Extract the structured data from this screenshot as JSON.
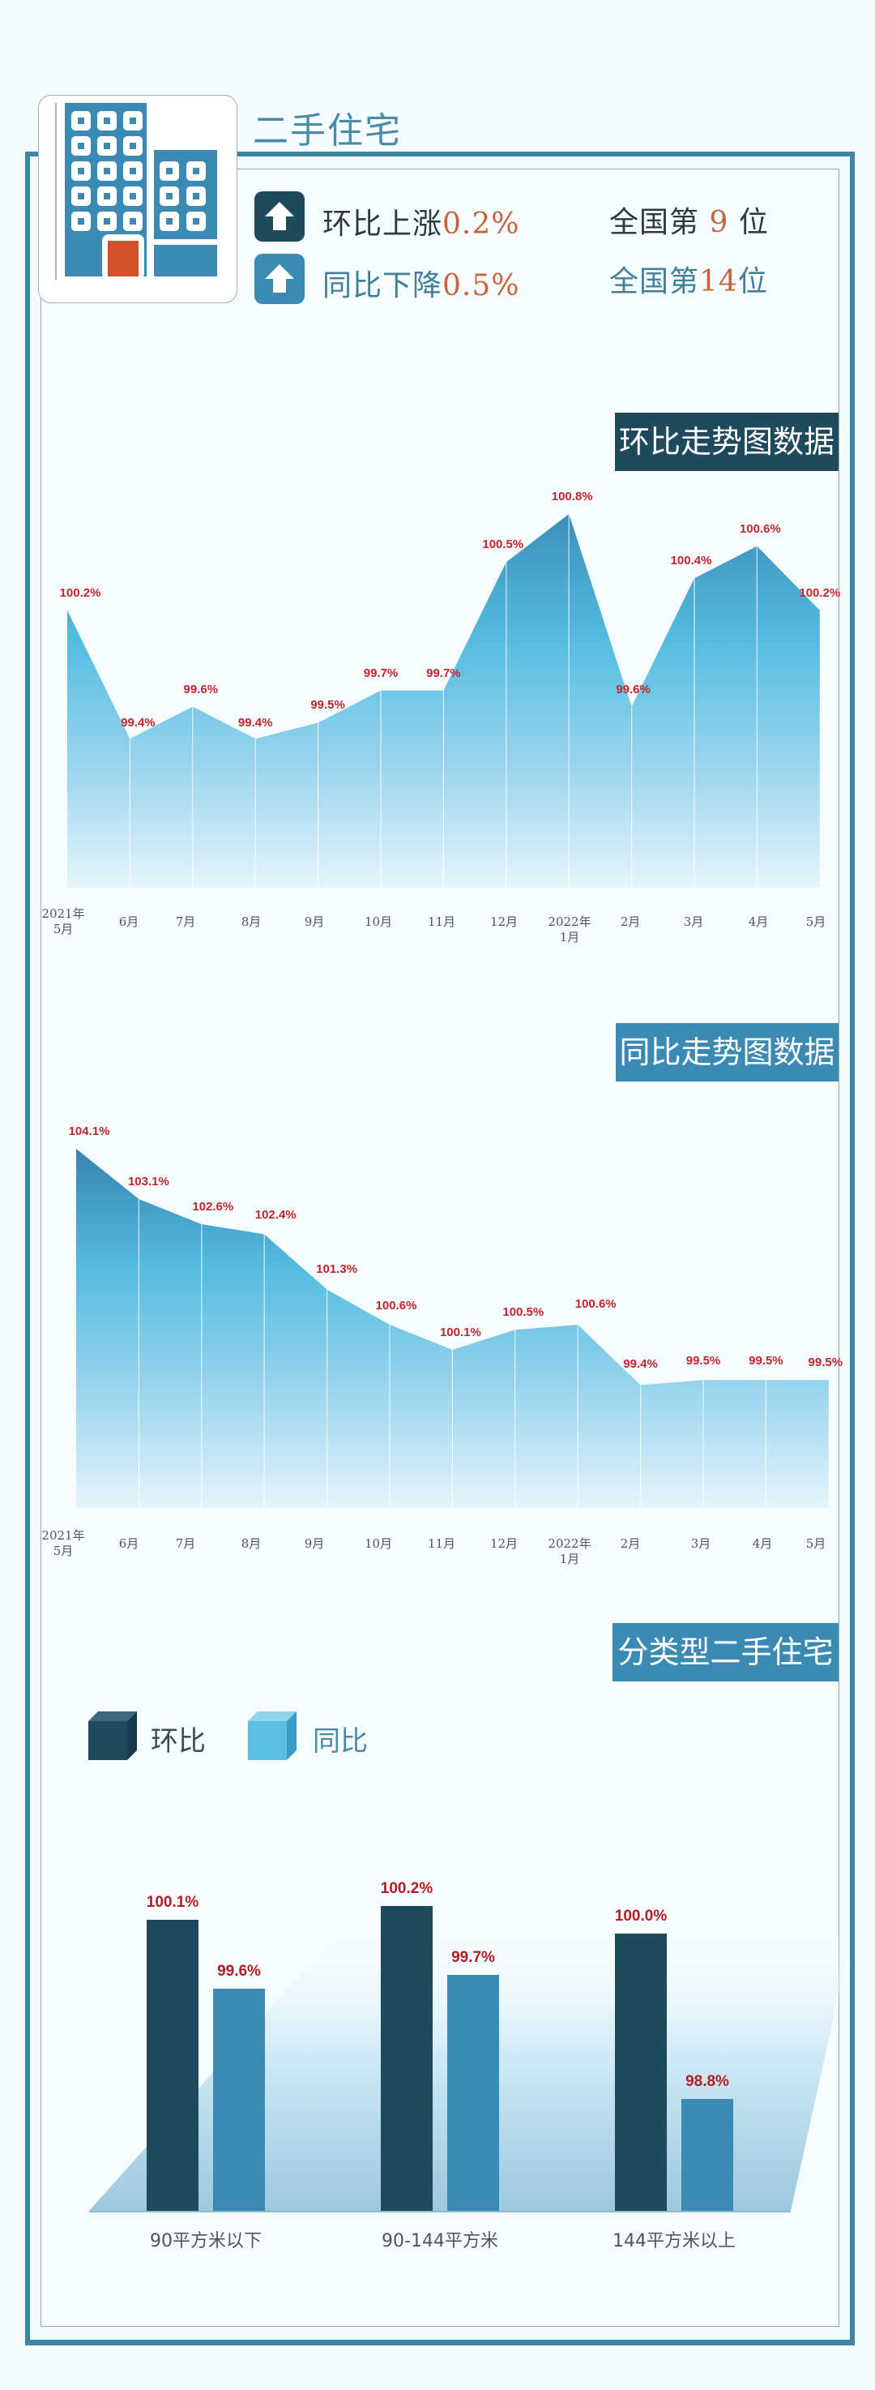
{
  "header": {
    "section_title": "二手住宅",
    "stats": [
      {
        "label": "环比上涨",
        "value": "0.2%",
        "rank_prefix": "全国第",
        "rank": " 9 ",
        "rank_suffix": "位",
        "icon": "arrow-up-icon",
        "color": "#1e4a5c"
      },
      {
        "label": "同比下降",
        "value": "0.5%",
        "rank_prefix": "全国第",
        "rank": "14",
        "rank_suffix": "位",
        "icon": "arrow-up-icon",
        "color": "#3a8ab4"
      }
    ]
  },
  "colors": {
    "frame": "#3f86a6",
    "dark_teal": "#1e4a5c",
    "mid_blue": "#3a8ab4",
    "light_blue": "#5bc0e0",
    "data_label": "#c0262e",
    "highlight_value": "#c8643c"
  },
  "chart_data": [
    {
      "type": "area",
      "title": "环比走势图数据",
      "xlabel": "",
      "ylabel": "",
      "grid": false,
      "categories": [
        "2021年\n5月",
        "6月",
        "7月",
        "8月",
        "9月",
        "10月",
        "11月",
        "12月",
        "2022年\n1月",
        "2月",
        "3月",
        "4月",
        "5月"
      ],
      "values": [
        100.2,
        99.4,
        99.6,
        99.4,
        99.5,
        99.7,
        99.7,
        100.5,
        100.8,
        99.6,
        100.4,
        100.6,
        100.2
      ],
      "labels": [
        "100.2%",
        "99.4%",
        "99.6%",
        "99.4%",
        "99.5%",
        "99.7%",
        "99.7%",
        "100.5%",
        "100.8%",
        "99.6%",
        "100.4%",
        "100.6%",
        "100.2%"
      ]
    },
    {
      "type": "area",
      "title": "同比走势图数据",
      "xlabel": "",
      "ylabel": "",
      "grid": false,
      "categories": [
        "2021年\n5月",
        "6月",
        "7月",
        "8月",
        "9月",
        "10月",
        "11月",
        "12月",
        "2022年\n1月",
        "2月",
        "3月",
        "4月",
        "5月"
      ],
      "values": [
        104.1,
        103.1,
        102.6,
        102.4,
        101.3,
        100.6,
        100.1,
        100.5,
        100.6,
        99.4,
        99.5,
        99.5,
        99.5
      ],
      "labels": [
        "104.1%",
        "103.1%",
        "102.6%",
        "102.4%",
        "101.3%",
        "100.6%",
        "100.1%",
        "100.5%",
        "100.6%",
        "99.4%",
        "99.5%",
        "99.5%",
        "99.5%"
      ]
    },
    {
      "type": "bar",
      "title": "分类型二手住宅",
      "categories": [
        "90平方米以下",
        "90-144平方米",
        "144平方米以上"
      ],
      "series": [
        {
          "name": "环比",
          "values": [
            100.1,
            100.2,
            100.0
          ],
          "labels": [
            "100.1%",
            "100.2%",
            "100.0%"
          ],
          "color": "#1e4a5c"
        },
        {
          "name": "同比",
          "values": [
            99.6,
            99.7,
            98.8
          ],
          "labels": [
            "99.6%",
            "99.7%",
            "98.8%"
          ],
          "color": "#3a8ab4"
        }
      ],
      "legend_position": "top-left"
    }
  ]
}
